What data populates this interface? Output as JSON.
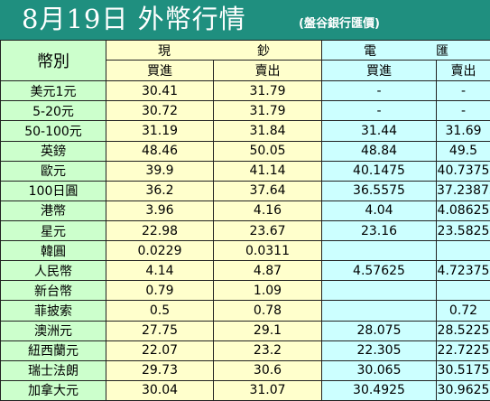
{
  "title": "8月19日 外幣行情",
  "source_note": "(盤谷銀行匯價)",
  "headers": {
    "currency": "幣別",
    "cash_group": [
      "現",
      "鈔"
    ],
    "tt_group": [
      "電",
      "匯"
    ],
    "buy": "買進",
    "sell": "賣出"
  },
  "rows": [
    {
      "currency": "美元1元",
      "cash_buy": "30.41",
      "cash_sell": "31.79",
      "tt_buy": "-",
      "tt_sell": "-"
    },
    {
      "currency": "5-20元",
      "cash_buy": "30.72",
      "cash_sell": "31.79",
      "tt_buy": "-",
      "tt_sell": "-"
    },
    {
      "currency": "50-100元",
      "cash_buy": "31.19",
      "cash_sell": "31.84",
      "tt_buy": "31.44",
      "tt_sell": "31.69"
    },
    {
      "currency": "英鎊",
      "cash_buy": "48.46",
      "cash_sell": "50.05",
      "tt_buy": "48.84",
      "tt_sell": "49.5"
    },
    {
      "currency": "歐元",
      "cash_buy": "39.9",
      "cash_sell": "41.14",
      "tt_buy": "40.1475",
      "tt_sell": "40.7375"
    },
    {
      "currency": "100日圓",
      "cash_buy": "36.2",
      "cash_sell": "37.64",
      "tt_buy": "36.5575",
      "tt_sell": "37.23875"
    },
    {
      "currency": "港幣",
      "cash_buy": "3.96",
      "cash_sell": "4.16",
      "tt_buy": "4.04",
      "tt_sell": "4.08625"
    },
    {
      "currency": "星元",
      "cash_buy": "22.98",
      "cash_sell": "23.67",
      "tt_buy": "23.16",
      "tt_sell": "23.5825"
    },
    {
      "currency": "韓圓",
      "cash_buy": "0.0229",
      "cash_sell": "0.0311",
      "tt_buy": "",
      "tt_sell": ""
    },
    {
      "currency": "人民幣",
      "cash_buy": "4.14",
      "cash_sell": "4.87",
      "tt_buy": "4.57625",
      "tt_sell": "4.72375"
    },
    {
      "currency": "新台幣",
      "cash_buy": "0.79",
      "cash_sell": "1.09",
      "tt_buy": "",
      "tt_sell": ""
    },
    {
      "currency": "菲披索",
      "cash_buy": "0.5",
      "cash_sell": "0.78",
      "tt_buy": "",
      "tt_sell": "0.72"
    },
    {
      "currency": "澳洲元",
      "cash_buy": "27.75",
      "cash_sell": "29.1",
      "tt_buy": "28.075",
      "tt_sell": "28.5225"
    },
    {
      "currency": "紐西蘭元",
      "cash_buy": "22.07",
      "cash_sell": "23.2",
      "tt_buy": "22.305",
      "tt_sell": "22.7225"
    },
    {
      "currency": "瑞士法朗",
      "cash_buy": "29.73",
      "cash_sell": "30.6",
      "tt_buy": "30.065",
      "tt_sell": "30.5175"
    },
    {
      "currency": "加拿大元",
      "cash_buy": "30.04",
      "cash_sell": "31.07",
      "tt_buy": "30.4925",
      "tt_sell": "30.9625"
    }
  ],
  "colors": {
    "title_bar": "#1f8f7f",
    "currency_column": "#ccffcc",
    "cash_columns": "#ffffcc",
    "tt_columns": "#ccffff"
  }
}
